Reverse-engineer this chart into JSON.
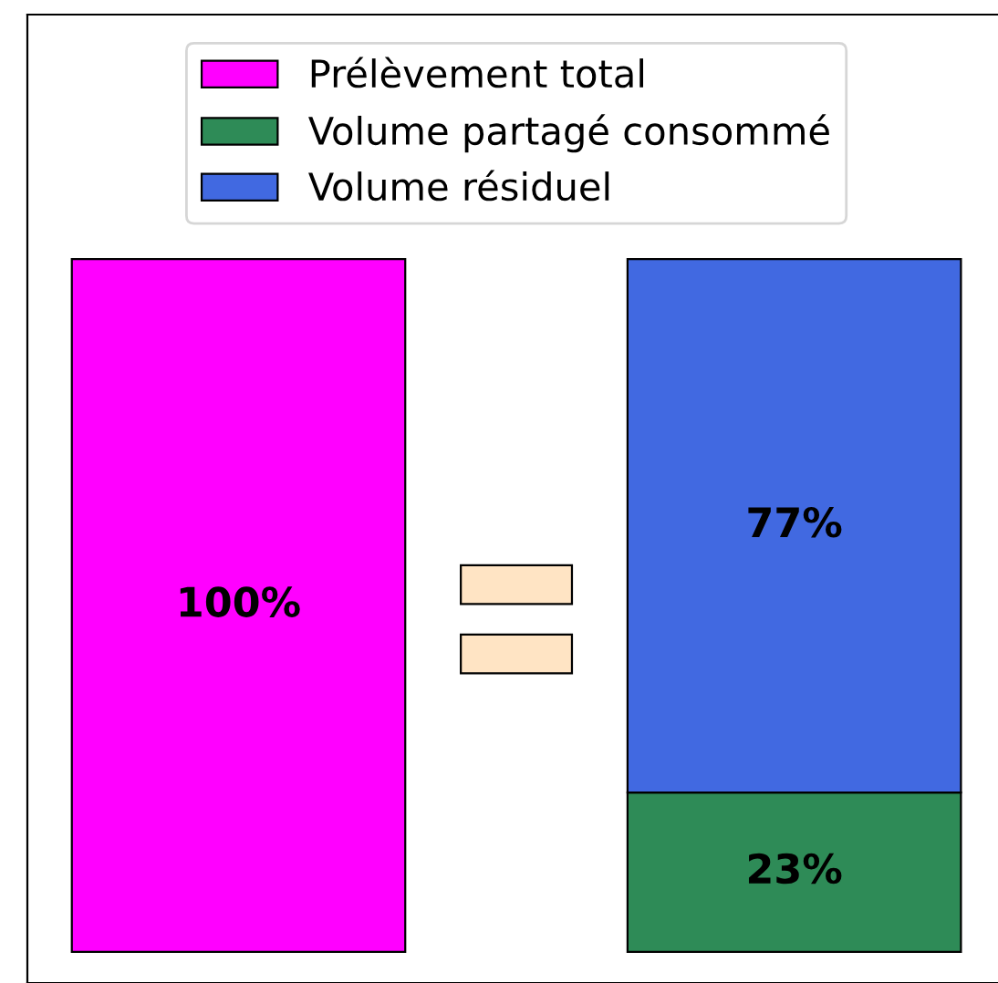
{
  "chart_data": {
    "type": "bar",
    "stacked": true,
    "categories": [
      null,
      null
    ],
    "series": [
      {
        "name": "Prélèvement total",
        "color": "#ff00ff",
        "values": [
          100,
          null
        ],
        "value_labels": [
          "100%",
          null
        ]
      },
      {
        "name": "Volume partagé consommé",
        "color": "#2e8b57",
        "values": [
          null,
          23
        ],
        "value_labels": [
          null,
          "23%"
        ]
      },
      {
        "name": "Volume résiduel",
        "color": "#4169e1",
        "values": [
          null,
          77
        ],
        "value_labels": [
          null,
          "77%"
        ]
      }
    ],
    "legend": "top"
  }
}
